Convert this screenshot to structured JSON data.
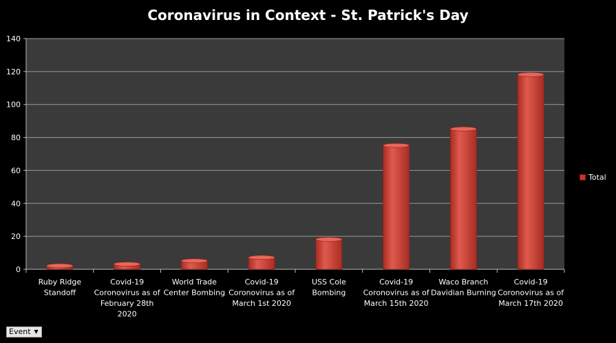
{
  "chart_data": {
    "type": "bar",
    "title": "Coronavirus in Context - St. Patrick's Day",
    "xlabel": "",
    "ylabel": "",
    "categories": [
      [
        "Ruby Ridge",
        "Standoff"
      ],
      [
        "Covid-19",
        "Coronovirus as of",
        "February 28th",
        "2020"
      ],
      [
        "World Trade",
        "Center Bombing"
      ],
      [
        "Covid-19",
        "Coronovirus as of",
        "March 1st 2020"
      ],
      [
        "USS Cole",
        "Bombing"
      ],
      [
        "Covid-19",
        "Coronovirus as of",
        "March 15th 2020"
      ],
      [
        "Waco Branch",
        "Davidian Burning"
      ],
      [
        "Covid-19",
        "Coronovirus as of",
        "March 17th 2020"
      ]
    ],
    "series": [
      {
        "name": "Total",
        "values": [
          3,
          4,
          6,
          8,
          19,
          76,
          86,
          119
        ]
      }
    ],
    "ylim": [
      0,
      140
    ],
    "yticks": [
      0,
      20,
      40,
      60,
      80,
      100,
      120,
      140
    ],
    "grid": true,
    "legend": "right",
    "colors": {
      "background": "#000000",
      "plot_area": "#3a3a3a",
      "bar": "#c0392b",
      "bar_light": "#e8665a",
      "bar_dark": "#8e1f16",
      "grid": "#9a9a9a",
      "text": "#ffffff"
    }
  },
  "filter": {
    "label": "Event",
    "icon": "dropdown-caret-icon"
  }
}
